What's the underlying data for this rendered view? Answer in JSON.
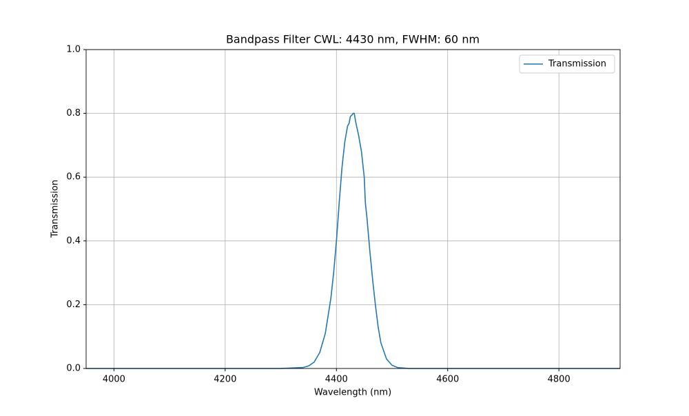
{
  "chart_data": {
    "type": "line",
    "title": "Bandpass Filter CWL: 4430 nm, FWHM: 60 nm",
    "xlabel": "Wavelength (nm)",
    "ylabel": "Transmission",
    "x": [
      3950,
      4300,
      4340,
      4350,
      4360,
      4370,
      4380,
      4390,
      4395,
      4400,
      4405,
      4410,
      4415,
      4420,
      4423,
      4425,
      4428,
      4430,
      4432,
      4435,
      4440,
      4445,
      4450,
      4452,
      4455,
      4460,
      4465,
      4470,
      4475,
      4480,
      4490,
      4500,
      4510,
      4530,
      4910
    ],
    "series": [
      {
        "name": "Transmission",
        "color": "#1f77b4",
        "values": [
          0,
          0,
          0.003,
          0.008,
          0.02,
          0.05,
          0.11,
          0.22,
          0.3,
          0.4,
          0.52,
          0.63,
          0.71,
          0.76,
          0.77,
          0.79,
          0.795,
          0.8,
          0.8,
          0.77,
          0.73,
          0.68,
          0.6,
          0.52,
          0.47,
          0.37,
          0.28,
          0.2,
          0.13,
          0.08,
          0.03,
          0.01,
          0.003,
          0,
          0
        ]
      }
    ],
    "xlim": [
      3950,
      4910
    ],
    "xticks": [
      4000,
      4200,
      4400,
      4600,
      4800
    ],
    "ylim": [
      0,
      1
    ],
    "yticks": [
      {
        "value": 0,
        "label": "0.0"
      },
      {
        "value": 0.2,
        "label": "0.2"
      },
      {
        "value": 0.4,
        "label": "0.4"
      },
      {
        "value": 0.6,
        "label": "0.6"
      },
      {
        "value": 0.8,
        "label": "0.8"
      },
      {
        "value": 1,
        "label": "1.0"
      }
    ],
    "grid": true,
    "legend": "upper right"
  }
}
